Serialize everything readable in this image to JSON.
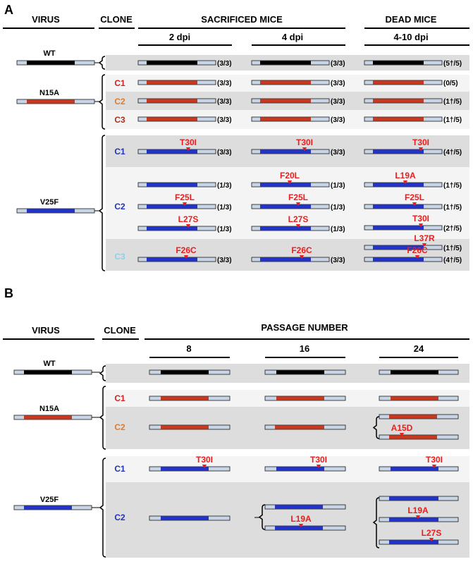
{
  "colors": {
    "wt": "#000000",
    "n15a": "#c8381e",
    "v25f": "#2233cc",
    "end": "#c7d5e6",
    "mut": "#ee1c1c",
    "band_dark": "#dddddd",
    "band_light": "#f4f4f4",
    "c1_red": "#d21f1f",
    "c2_orange": "#e07b2c",
    "c3_darkred": "#a8331a",
    "blue_label": "#2233bb",
    "c3_cyan": "#8fd0e6"
  },
  "panelA": {
    "label": "A",
    "col_virus": "VIRUS",
    "col_clone": "CLONE",
    "col_sacrificed": "SACRIFICED MICE",
    "col_dead": "DEAD MICE",
    "sub_2dpi": "2 dpi",
    "sub_4dpi": "4 dpi",
    "sub_dead": "4-10 dpi",
    "virus_wt": "WT",
    "virus_n15a": "N15A",
    "virus_v25f": "V25F",
    "clone_n_c1": "C1",
    "clone_n_c2": "C2",
    "clone_n_c3": "C3",
    "clone_v_c1": "C1",
    "clone_v_c2": "C2",
    "clone_v_c3": "C3",
    "wt": {
      "d2": "(3/3)",
      "d4": "(3/3)",
      "dead": "(5†/5)"
    },
    "n_c1": {
      "d2": "(3/3)",
      "d4": "(3/3)",
      "dead": "(0/5)"
    },
    "n_c2": {
      "d2": "(3/3)",
      "d4": "(3/3)",
      "dead": "(1†/5)"
    },
    "n_c3": {
      "d2": "(3/3)",
      "d4": "(3/3)",
      "dead": "(1†/5)"
    },
    "v_c1": {
      "d2_mut": "T30I",
      "d2": "(3/3)",
      "d4_mut": "T30I",
      "d4": "(3/3)",
      "dead_mut": "T30I",
      "dead": "(4†/5)"
    },
    "v_c2": {
      "d2_r1": "(1/3)",
      "d2_r2_mut": "F25L",
      "d2_r2": "(1/3)",
      "d2_r3_mut": "L27S",
      "d2_r3": "(1/3)",
      "d4_r1_mut": "F20L",
      "d4_r1": "(1/3)",
      "d4_r2_mut": "F25L",
      "d4_r2": "(1/3)",
      "d4_r3_mut": "L27S",
      "d4_r3": "(1/3)",
      "dead_r1_mut": "L19A",
      "dead_r1": "(1†/5)",
      "dead_r2_mut": "F25L",
      "dead_r2": "(1†/5)",
      "dead_r3_mut": "T30I",
      "dead_r3": "(2†/5)",
      "dead_r4_mut": "L37R",
      "dead_r4": "(1†/5)"
    },
    "v_c3": {
      "d2_mut": "F26C",
      "d2": "(3/3)",
      "d4_mut": "F26C",
      "d4": "(3/3)",
      "dead_mut": "F26C",
      "dead": "(4†/5)"
    }
  },
  "panelB": {
    "label": "B",
    "col_virus": "VIRUS",
    "col_clone": "CLONE",
    "col_passage": "PASSAGE NUMBER",
    "sub_p8": "8",
    "sub_p16": "16",
    "sub_p24": "24",
    "virus_wt": "WT",
    "virus_n15a": "N15A",
    "virus_v25f": "V25F",
    "clone_n_c1": "C1",
    "clone_n_c2": "C2",
    "clone_v_c1": "C1",
    "clone_v_c2": "C2",
    "n_c2_p24_mut": "A15D",
    "v_c1_p8_mut": "T30I",
    "v_c1_p16_mut": "T30I",
    "v_c1_p24_mut": "T30I",
    "v_c2_p16_mut": "L19A",
    "v_c2_p24_mut1": "L19A",
    "v_c2_p24_mut2": "L27S"
  }
}
